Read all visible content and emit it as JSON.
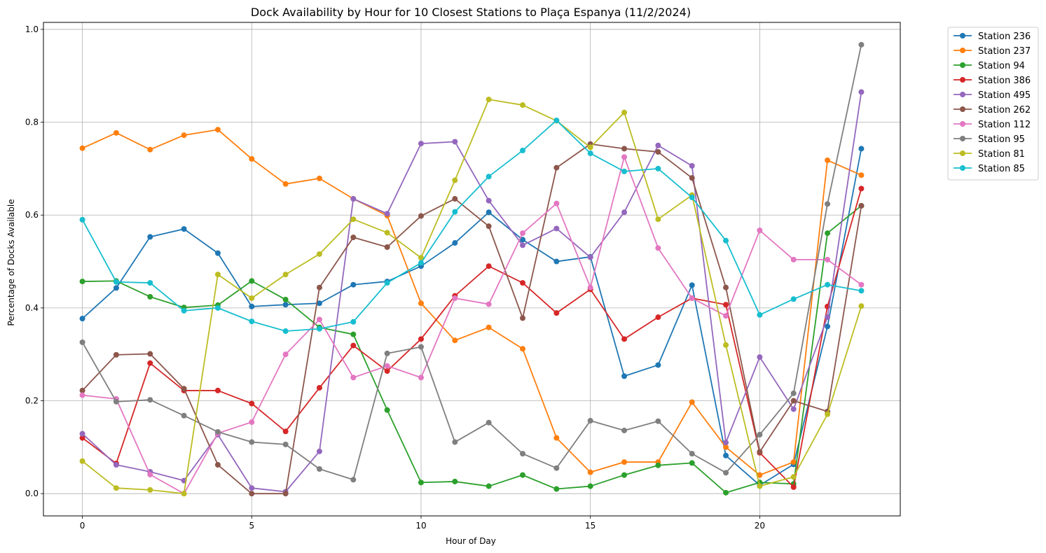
{
  "chart_data": {
    "type": "line",
    "title": "Dock Availability by Hour for 10 Closest Stations to Plaça Espanya (11/2/2024)",
    "xlabel": "Hour of Day",
    "ylabel": "Percentage of Docks Available",
    "xlim": [
      -1.15,
      24.15
    ],
    "ylim": [
      -0.048,
      1.015
    ],
    "xticks": [
      0,
      5,
      10,
      15,
      20
    ],
    "yticks": [
      0.0,
      0.2,
      0.4,
      0.6,
      0.8,
      1.0
    ],
    "ytick_labels": [
      "0.0",
      "0.2",
      "0.4",
      "0.6",
      "0.8",
      "1.0"
    ],
    "grid": true,
    "legend_position": "outside top-right",
    "x": [
      0,
      1,
      2,
      3,
      4,
      5,
      6,
      7,
      8,
      9,
      10,
      11,
      12,
      13,
      14,
      15,
      16,
      17,
      18,
      19,
      20,
      21,
      22,
      23
    ],
    "series": [
      {
        "name": "Station 236",
        "color": "#1f77b4",
        "values": [
          0.377,
          0.443,
          0.553,
          0.57,
          0.518,
          0.403,
          0.407,
          0.41,
          0.45,
          0.457,
          0.49,
          0.54,
          0.606,
          0.547,
          0.5,
          0.51,
          0.253,
          0.277,
          0.449,
          0.082,
          0.018,
          0.063,
          0.36,
          0.743
        ]
      },
      {
        "name": "Station 237",
        "color": "#ff7f0e",
        "values": [
          0.744,
          0.777,
          0.741,
          0.772,
          0.784,
          0.721,
          0.667,
          0.679,
          0.635,
          0.599,
          0.41,
          0.33,
          0.358,
          0.312,
          0.12,
          0.046,
          0.068,
          0.068,
          0.197,
          0.1,
          0.04,
          0.068,
          0.718,
          0.686
        ]
      },
      {
        "name": "Station 94",
        "color": "#2ca02c",
        "values": [
          0.457,
          0.458,
          0.424,
          0.401,
          0.406,
          0.458,
          0.418,
          0.358,
          0.343,
          0.18,
          0.024,
          0.026,
          0.016,
          0.04,
          0.01,
          0.016,
          0.04,
          0.061,
          0.066,
          0.002,
          0.024,
          0.021,
          0.561,
          0.62
        ]
      },
      {
        "name": "Station 386",
        "color": "#d62728",
        "values": [
          0.12,
          0.065,
          0.281,
          0.222,
          0.222,
          0.194,
          0.134,
          0.228,
          0.319,
          0.264,
          0.333,
          0.426,
          0.49,
          0.454,
          0.389,
          0.44,
          0.333,
          0.38,
          0.421,
          0.407,
          0.088,
          0.014,
          0.403,
          0.657
        ]
      },
      {
        "name": "Station 495",
        "color": "#9467bd",
        "values": [
          0.129,
          0.062,
          0.047,
          0.028,
          0.127,
          0.012,
          0.004,
          0.091,
          0.635,
          0.603,
          0.754,
          0.758,
          0.631,
          0.535,
          0.571,
          0.509,
          0.606,
          0.75,
          0.706,
          0.11,
          0.294,
          0.182,
          0.38,
          0.865
        ]
      },
      {
        "name": "Station 262",
        "color": "#8c564b",
        "values": [
          0.222,
          0.299,
          0.301,
          0.226,
          0.062,
          0.0,
          0.0,
          0.444,
          0.552,
          0.531,
          0.598,
          0.635,
          0.576,
          0.378,
          0.702,
          0.753,
          0.743,
          0.736,
          0.68,
          0.444,
          0.09,
          0.2,
          0.177,
          0.62
        ]
      },
      {
        "name": "Station 112",
        "color": "#e377c2",
        "values": [
          0.212,
          0.204,
          0.041,
          0.0,
          0.13,
          0.154,
          0.3,
          0.375,
          0.25,
          0.275,
          0.25,
          0.421,
          0.408,
          0.561,
          0.625,
          0.444,
          0.725,
          0.529,
          0.421,
          0.383,
          0.567,
          0.504,
          0.504,
          0.45
        ]
      },
      {
        "name": "Station 95",
        "color": "#7f7f7f",
        "values": [
          0.326,
          0.198,
          0.202,
          0.168,
          0.133,
          0.111,
          0.106,
          0.053,
          0.03,
          0.302,
          0.316,
          0.111,
          0.153,
          0.086,
          0.055,
          0.157,
          0.136,
          0.156,
          0.086,
          0.045,
          0.127,
          0.216,
          0.624,
          0.967
        ]
      },
      {
        "name": "Station 81",
        "color": "#bcbd22",
        "values": [
          0.07,
          0.012,
          0.008,
          0.0,
          0.472,
          0.421,
          0.472,
          0.516,
          0.591,
          0.562,
          0.508,
          0.675,
          0.849,
          0.837,
          0.803,
          0.746,
          0.821,
          0.591,
          0.643,
          0.32,
          0.016,
          0.036,
          0.171,
          0.404
        ]
      },
      {
        "name": "Station 85",
        "color": "#17becf",
        "values": [
          0.59,
          0.456,
          0.454,
          0.394,
          0.4,
          0.371,
          0.35,
          0.355,
          0.37,
          0.454,
          0.497,
          0.607,
          0.683,
          0.739,
          0.804,
          0.733,
          0.694,
          0.7,
          0.638,
          0.545,
          0.385,
          0.419,
          0.45,
          0.437
        ]
      }
    ]
  }
}
